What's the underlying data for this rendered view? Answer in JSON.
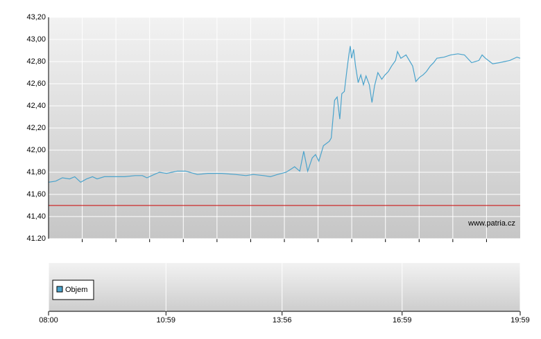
{
  "chart_data": {
    "type": "line",
    "x": [
      "08:00",
      "08:11",
      "08:21",
      "08:32",
      "08:40",
      "08:49",
      "08:58",
      "09:07",
      "09:14",
      "09:25",
      "09:40",
      "09:56",
      "10:12",
      "10:23",
      "10:30",
      "10:41",
      "10:49",
      "11:00",
      "11:16",
      "11:29",
      "11:47",
      "12:03",
      "12:24",
      "12:45",
      "13:01",
      "13:12",
      "13:28",
      "13:38",
      "13:49",
      "14:02",
      "14:10",
      "14:15",
      "14:23",
      "14:29",
      "14:35",
      "14:42",
      "14:47",
      "14:52",
      "14:59",
      "15:08",
      "15:11",
      "15:16",
      "15:20",
      "15:24",
      "15:27",
      "15:31",
      "15:35",
      "15:38",
      "15:40",
      "15:42",
      "15:45",
      "15:48",
      "15:52",
      "15:56",
      "16:00",
      "16:04",
      "16:09",
      "16:13",
      "16:17",
      "16:22",
      "16:28",
      "16:33",
      "16:38",
      "16:43",
      "16:49",
      "16:52",
      "16:57",
      "17:05",
      "17:10",
      "17:15",
      "17:20",
      "17:26",
      "17:31",
      "17:36",
      "17:42",
      "17:47",
      "17:52",
      "18:03",
      "18:13",
      "18:24",
      "18:34",
      "18:45",
      "18:56",
      "19:01",
      "19:06",
      "19:17",
      "19:27",
      "19:43",
      "19:54",
      "19:59"
    ],
    "series": [
      {
        "color": "#4aa3cc",
        "values": [
          41.71,
          41.72,
          41.75,
          41.74,
          41.76,
          41.71,
          41.74,
          41.76,
          41.74,
          41.76,
          41.76,
          41.76,
          41.77,
          41.77,
          41.75,
          41.78,
          41.8,
          41.79,
          41.81,
          41.81,
          41.78,
          41.79,
          41.79,
          41.78,
          41.77,
          41.78,
          41.77,
          41.76,
          41.78,
          41.8,
          41.83,
          41.85,
          41.81,
          41.99,
          41.81,
          41.93,
          41.96,
          41.9,
          42.04,
          42.08,
          42.11,
          42.45,
          42.48,
          42.28,
          42.51,
          42.53,
          42.73,
          42.87,
          42.94,
          42.83,
          42.91,
          42.76,
          42.61,
          42.68,
          42.59,
          42.67,
          42.59,
          42.43,
          42.58,
          42.7,
          42.64,
          42.68,
          42.71,
          42.76,
          42.81,
          42.89,
          42.83,
          42.86,
          42.81,
          42.76,
          42.62,
          42.66,
          42.68,
          42.71,
          42.76,
          42.79,
          42.83,
          42.84,
          42.86,
          42.87,
          42.86,
          42.79,
          42.81,
          42.86,
          42.83,
          42.78,
          42.79,
          42.81,
          42.84,
          42.83
        ]
      }
    ],
    "xlim": [
      "08:00",
      "19:59"
    ],
    "xticks": [
      "08:00",
      "10:59",
      "13:56",
      "16:59",
      "19:59"
    ],
    "ylim": [
      41.2,
      43.2
    ],
    "yticks": [
      {
        "value": 41.2,
        "label": "41.20"
      },
      {
        "value": 41.4,
        "label": "41,40"
      },
      {
        "value": 41.6,
        "label": "41,60"
      },
      {
        "value": 41.8,
        "label": "41,80"
      },
      {
        "value": 42.0,
        "label": "42,00"
      },
      {
        "value": 42.2,
        "label": "42,20"
      },
      {
        "value": 42.4,
        "label": "42,40"
      },
      {
        "value": 42.6,
        "label": "42,60"
      },
      {
        "value": 42.8,
        "label": "42,80"
      },
      {
        "value": 43.0,
        "label": "43,00"
      },
      {
        "value": 43.2,
        "label": "43,20"
      }
    ],
    "grid": true,
    "reference_line": {
      "value": 41.5,
      "color": "#cc0000"
    },
    "watermark": "www.patria.cz",
    "volume_legend": {
      "name": "Objem",
      "color": "#4aa3cc"
    }
  }
}
